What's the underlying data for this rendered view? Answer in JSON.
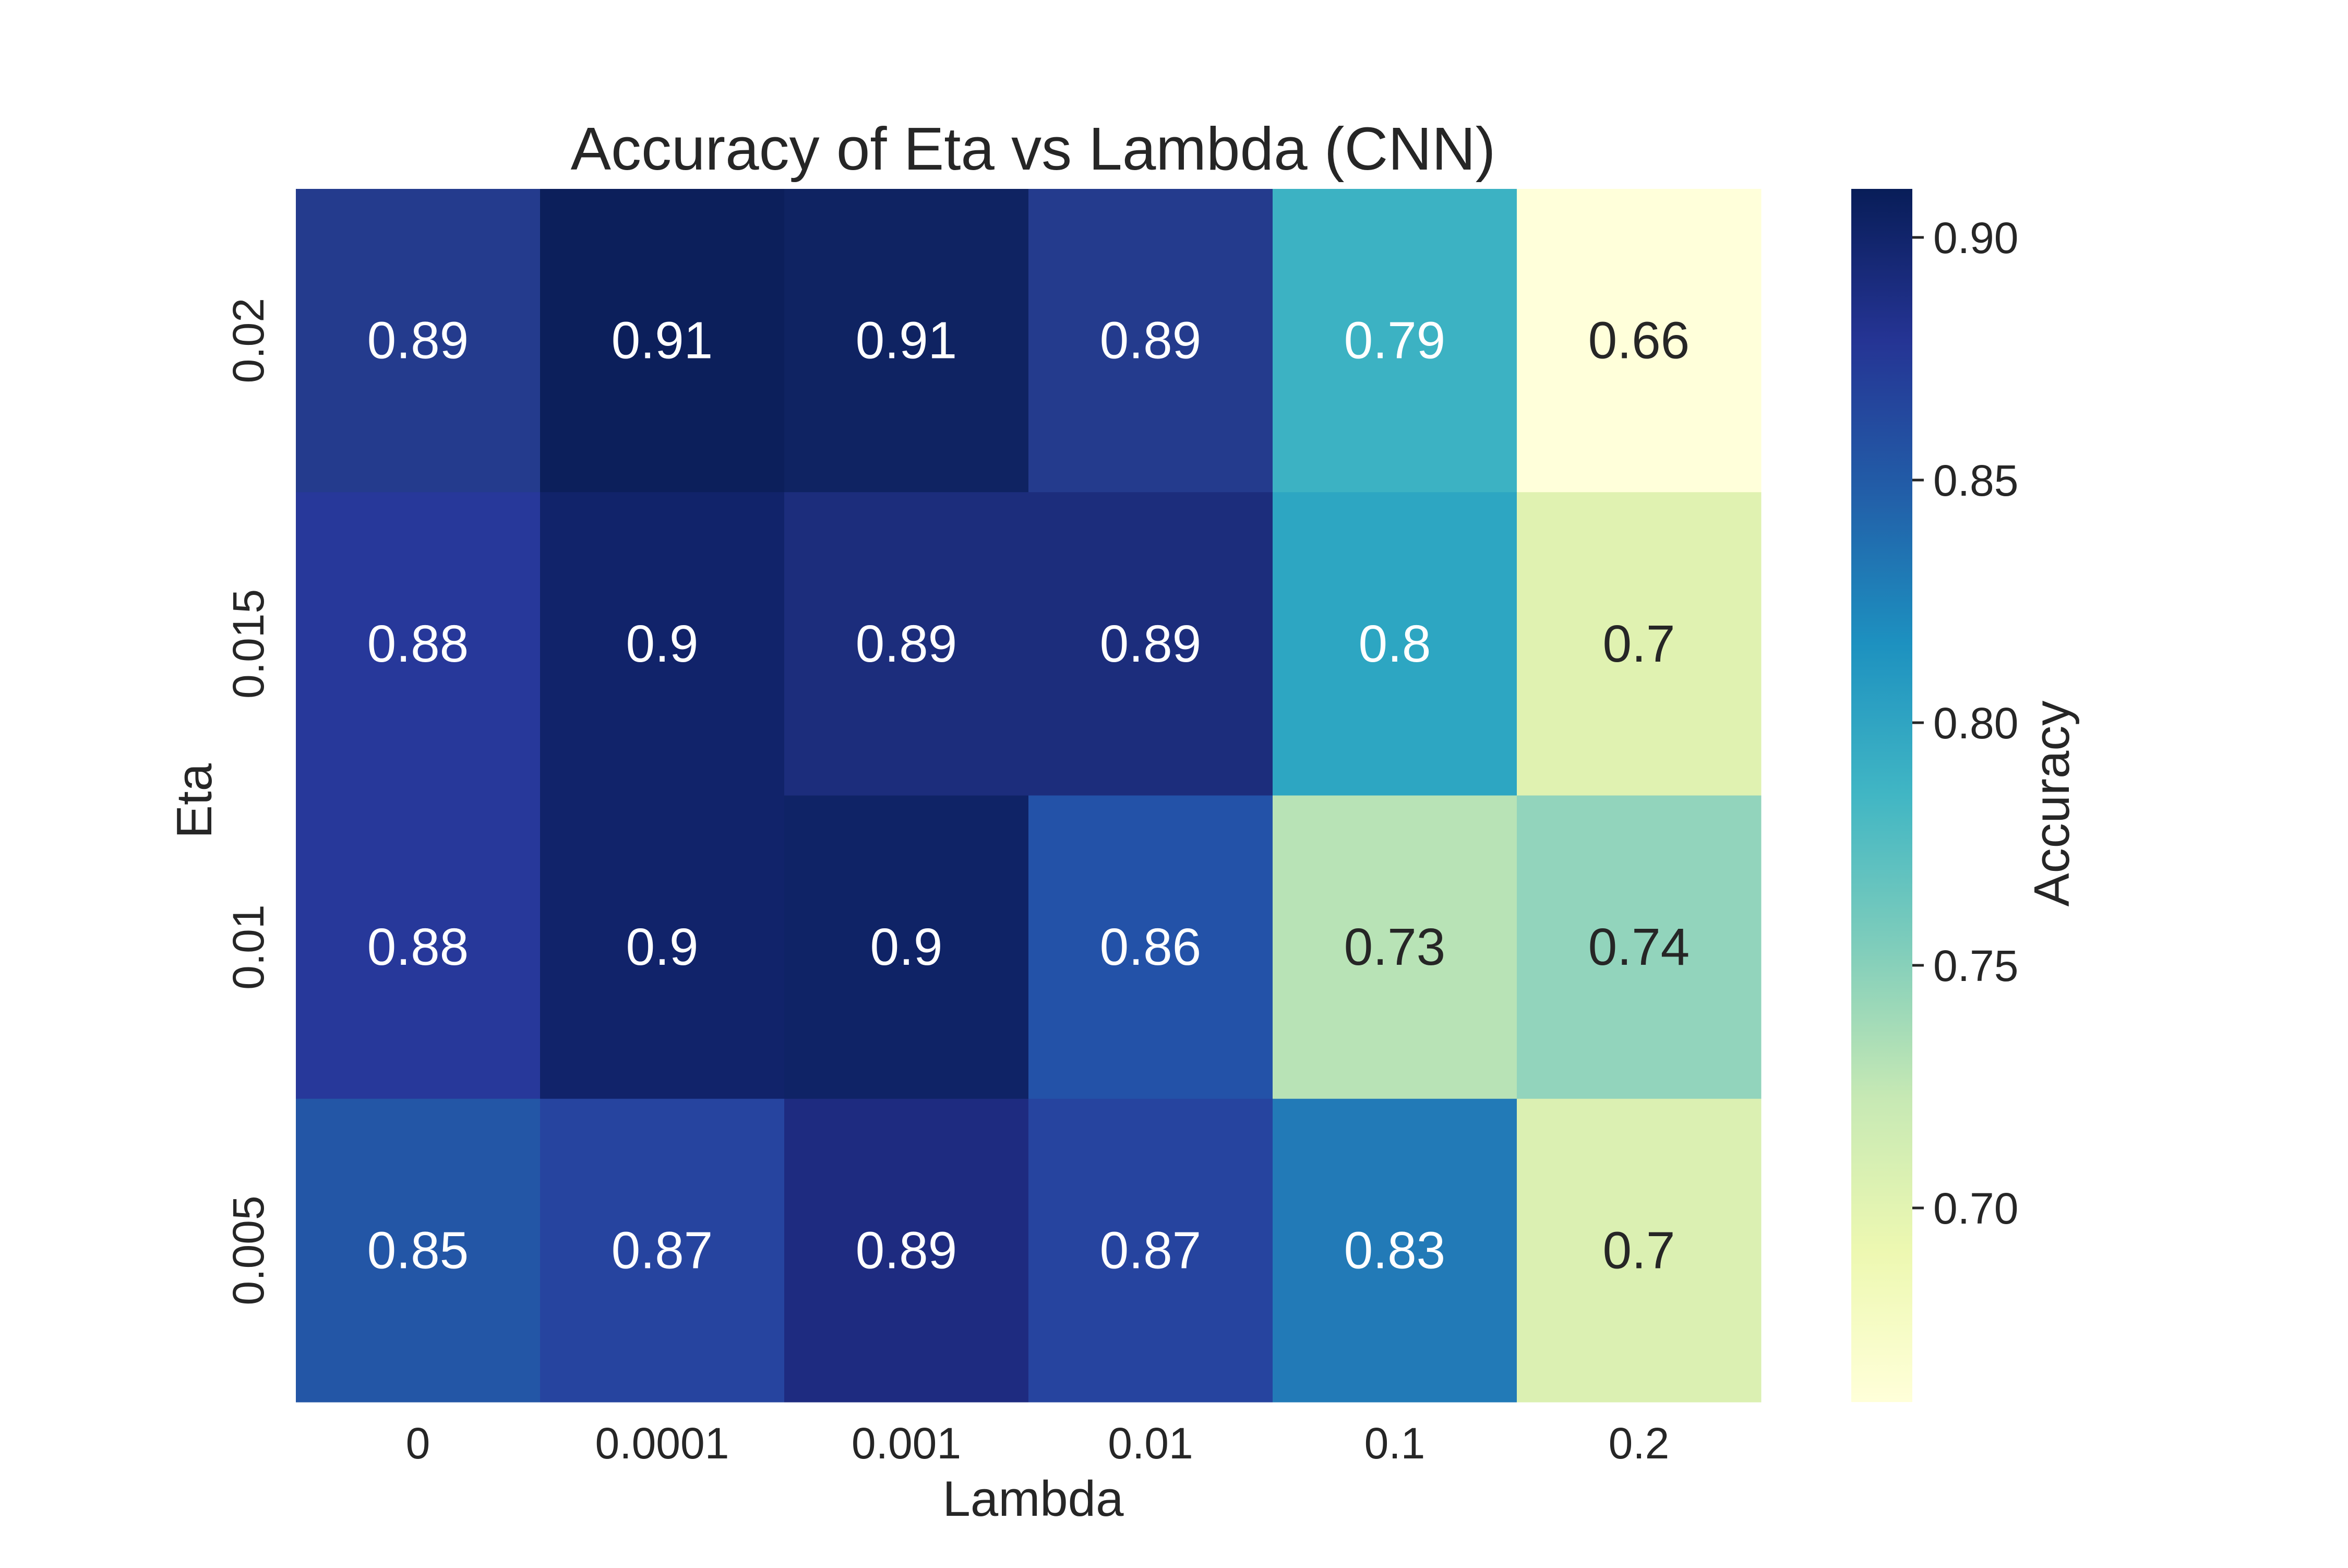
{
  "chart_data": {
    "type": "heatmap",
    "title": "Accuracy of Eta vs Lambda (CNN)",
    "xlabel": "Lambda",
    "ylabel": "Eta",
    "x_categories": [
      "0",
      "0.0001",
      "0.001",
      "0.01",
      "0.1",
      "0.2"
    ],
    "y_categories": [
      "0.02",
      "0.015",
      "0.01",
      "0.005"
    ],
    "values": [
      [
        0.89,
        0.91,
        0.91,
        0.89,
        0.79,
        0.66
      ],
      [
        0.88,
        0.9,
        0.89,
        0.89,
        0.8,
        0.7
      ],
      [
        0.88,
        0.9,
        0.9,
        0.86,
        0.73,
        0.74
      ],
      [
        0.85,
        0.87,
        0.89,
        0.87,
        0.83,
        0.7
      ]
    ],
    "cell_colors": [
      [
        "#243b8d",
        "#0c1f5b",
        "#0f2362",
        "#243b8d",
        "#3cb2c3",
        "#ffffda"
      ],
      [
        "#27389a",
        "#11236a",
        "#1c2d7c",
        "#1c2d7c",
        "#2da6c2",
        "#e0f2b1"
      ],
      [
        "#27389a",
        "#11236a",
        "#0f2366",
        "#2352a8",
        "#b8e3b6",
        "#92d4bc"
      ],
      [
        "#2356a6",
        "#26449f",
        "#1e2b80",
        "#26449f",
        "#227ab7",
        "#dbf0b2"
      ]
    ],
    "colorbar": {
      "label": "Accuracy",
      "ticks": [
        "0.70",
        "0.75",
        "0.80",
        "0.85",
        "0.90"
      ],
      "tick_values": [
        0.7,
        0.75,
        0.8,
        0.85,
        0.9
      ],
      "range": [
        0.66,
        0.91
      ],
      "colormap": "YlGnBu",
      "gradient": [
        "#ffffd9",
        "#edf8b1",
        "#c7e9b4",
        "#7fcdbb",
        "#41b6c4",
        "#1d91c0",
        "#225ea8",
        "#253494",
        "#081d58"
      ]
    },
    "annotation_colors": {
      "light_text": "#ffffff",
      "dark_text": "#262626"
    },
    "grid": false
  }
}
